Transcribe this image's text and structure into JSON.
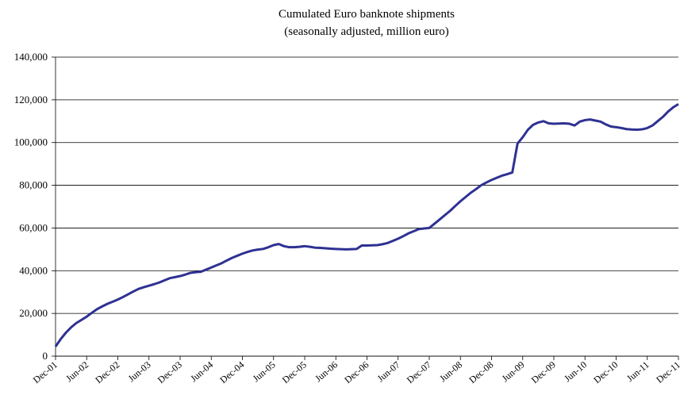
{
  "chart_data": {
    "type": "line",
    "title": "Cumulated Euro banknote shipments",
    "subtitle": "(seasonally adjusted, million euro)",
    "categories": [
      "Dec-01",
      null,
      null,
      null,
      null,
      null,
      "Jun-02",
      null,
      null,
      null,
      null,
      null,
      "Dec-02",
      null,
      null,
      null,
      null,
      null,
      "Jun-03",
      null,
      null,
      null,
      null,
      null,
      "Dec-03",
      null,
      null,
      null,
      null,
      null,
      "Jun-04",
      null,
      null,
      null,
      null,
      null,
      "Dec-04",
      null,
      null,
      null,
      null,
      null,
      "Jun-05",
      null,
      null,
      null,
      null,
      null,
      "Dec-05",
      null,
      null,
      null,
      null,
      null,
      "Jun-06",
      null,
      null,
      null,
      null,
      null,
      "Dec-06",
      null,
      null,
      null,
      null,
      null,
      "Jun-07",
      null,
      null,
      null,
      null,
      null,
      "Dec-07",
      null,
      null,
      null,
      null,
      null,
      "Jun-08",
      null,
      null,
      null,
      null,
      null,
      "Dec-08",
      null,
      null,
      null,
      null,
      null,
      "Jun-09",
      null,
      null,
      null,
      null,
      null,
      "Dec-09",
      null,
      null,
      null,
      null,
      null,
      "Jun-10",
      null,
      null,
      null,
      null,
      null,
      "Dec-10",
      null,
      null,
      null,
      null,
      null,
      "Jun-11",
      null,
      null,
      null,
      null,
      null,
      "Dec-11"
    ],
    "series": [
      {
        "name": "Cumulated Euro banknote shipments",
        "color": "#2e3192",
        "values": [
          4500,
          8000,
          11000,
          13500,
          15500,
          17000,
          18500,
          20300,
          22000,
          23300,
          24500,
          25500,
          26500,
          27700,
          29000,
          30300,
          31500,
          32300,
          33000,
          33700,
          34500,
          35500,
          36500,
          37000,
          37500,
          38200,
          39000,
          39300,
          39500,
          40500,
          41500,
          42500,
          43500,
          44800,
          46000,
          47000,
          48000,
          48800,
          49500,
          49900,
          50200,
          51000,
          52000,
          52500,
          51500,
          51000,
          51000,
          51200,
          51500,
          51200,
          50800,
          50700,
          50500,
          50300,
          50200,
          50100,
          50000,
          50100,
          50200,
          51800,
          51800,
          51900,
          52000,
          52400,
          53000,
          54000,
          55000,
          56200,
          57500,
          58500,
          59500,
          59800,
          60000,
          62000,
          64000,
          66000,
          68000,
          70300,
          72500,
          74500,
          76500,
          78200,
          80000,
          81300,
          82500,
          83500,
          84500,
          85200,
          86000,
          99500,
          102500,
          106000,
          108300,
          109400,
          110000,
          109000,
          108800,
          108900,
          109000,
          108800,
          108000,
          109800,
          110500,
          110800,
          110300,
          109800,
          108500,
          107500,
          107200,
          106800,
          106300,
          106100,
          106000,
          106200,
          106800,
          108000,
          110000,
          112000,
          114500,
          116500,
          118000
        ]
      }
    ],
    "ylim": [
      0,
      140000
    ],
    "yticks": [
      0,
      {
        "value": 20000,
        "label": "20,000"
      },
      {
        "value": 40000,
        "label": "40,000"
      },
      {
        "value": 60000,
        "label": "60,000"
      },
      {
        "value": 80000,
        "label": "80,000"
      },
      {
        "value": 100000,
        "label": "100,000"
      },
      {
        "value": 120000,
        "label": "120,000"
      },
      {
        "value": 140000,
        "label": "140,000"
      }
    ],
    "grid": true
  }
}
